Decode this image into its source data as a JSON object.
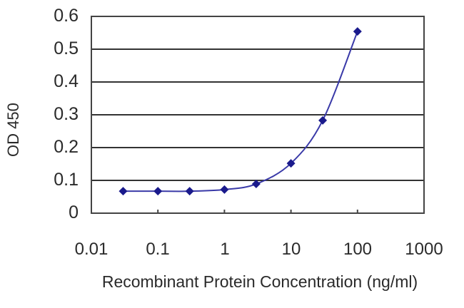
{
  "chart_data": {
    "type": "line",
    "title": "",
    "xlabel": "Recombinant Protein Concentration (ng/ml)",
    "ylabel": "OD 450",
    "xscale": "log",
    "xlim": [
      0.01,
      1000
    ],
    "ylim": [
      0,
      0.6
    ],
    "grid": "horizontal",
    "legend": null,
    "x_tick_labels": [
      "0.01",
      "0.1",
      "1",
      "10",
      "100",
      "1000"
    ],
    "y_tick_labels": [
      "0",
      "0.1",
      "0.2",
      "0.3",
      "0.4",
      "0.5",
      "0.6"
    ],
    "series": [
      {
        "name": "OD 450",
        "color": "#1a1a8c",
        "marker": "diamond",
        "x": [
          0.03,
          0.1,
          0.3,
          1,
          3,
          10,
          30,
          100
        ],
        "y": [
          0.067,
          0.067,
          0.067,
          0.072,
          0.089,
          0.152,
          0.283,
          0.554
        ]
      }
    ]
  },
  "axes": {
    "y_ticks": [
      "0.6",
      "0.5",
      "0.4",
      "0.3",
      "0.2",
      "0.1",
      "0"
    ],
    "x_ticks": [
      "0.01",
      "0.1",
      "1",
      "10",
      "100",
      "1000"
    ],
    "ylabel": "OD 450",
    "xlabel": "Recombinant Protein Concentration (ng/ml)"
  }
}
